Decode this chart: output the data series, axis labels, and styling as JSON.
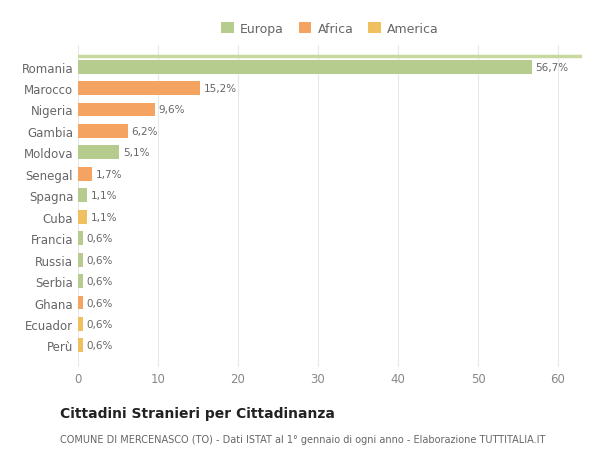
{
  "countries": [
    "Romania",
    "Marocco",
    "Nigeria",
    "Gambia",
    "Moldova",
    "Senegal",
    "Spagna",
    "Cuba",
    "Francia",
    "Russia",
    "Serbia",
    "Ghana",
    "Ecuador",
    "Perù"
  ],
  "values": [
    56.7,
    15.2,
    9.6,
    6.2,
    5.1,
    1.7,
    1.1,
    1.1,
    0.6,
    0.6,
    0.6,
    0.6,
    0.6,
    0.6
  ],
  "labels": [
    "56,7%",
    "15,2%",
    "9,6%",
    "6,2%",
    "5,1%",
    "1,7%",
    "1,1%",
    "1,1%",
    "0,6%",
    "0,6%",
    "0,6%",
    "0,6%",
    "0,6%",
    "0,6%"
  ],
  "bar_colors": [
    "#b5cc8e",
    "#f4a460",
    "#f4a460",
    "#f4a460",
    "#b5cc8e",
    "#f4a460",
    "#b5cc8e",
    "#f0c060",
    "#b5cc8e",
    "#b5cc8e",
    "#b5cc8e",
    "#f4a460",
    "#f0c060",
    "#f0c060"
  ],
  "xlim": [
    0,
    63
  ],
  "xticks": [
    0,
    10,
    20,
    30,
    40,
    50,
    60
  ],
  "title": "Cittadini Stranieri per Cittadinanza",
  "subtitle": "COMUNE DI MERCENASCO (TO) - Dati ISTAT al 1° gennaio di ogni anno - Elaborazione TUTTITALIA.IT",
  "legend_labels": [
    "Europa",
    "Africa",
    "America"
  ],
  "legend_colors": [
    "#b5cc8e",
    "#f4a460",
    "#f0c060"
  ],
  "bg_color": "#ffffff",
  "grid_color": "#e8e8e8",
  "top_line_color": "#c8d9a0"
}
